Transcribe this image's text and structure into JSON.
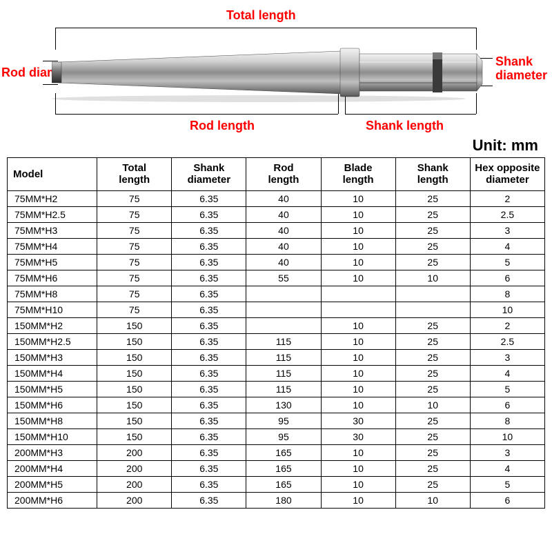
{
  "diagram": {
    "labels": {
      "total_length": "Total length",
      "rod_diameter": "Rod diameter",
      "shank_diameter": "Shank\ndiameter",
      "rod_length": "Rod length",
      "shank_length": "Shank length"
    },
    "unit_text": "Unit: mm",
    "colors": {
      "label_red": "#ff0000",
      "label_black": "#000000",
      "bit_light": "#d8d8d8",
      "bit_mid": "#a5a5a5",
      "bit_dark": "#4a4a4a",
      "bit_shadow": "#1a1a1a"
    }
  },
  "table": {
    "headers": [
      "Model",
      "Total\nlength",
      "Shank\ndiameter",
      "Rod\nlength",
      "Blade\nlength",
      "Shank\nlength",
      "Hex opposite\ndiameter"
    ],
    "rows": [
      [
        "75MM*H2",
        "75",
        "6.35",
        "40",
        "10",
        "25",
        "2"
      ],
      [
        "75MM*H2.5",
        "75",
        "6.35",
        "40",
        "10",
        "25",
        "2.5"
      ],
      [
        "75MM*H3",
        "75",
        "6.35",
        "40",
        "10",
        "25",
        "3"
      ],
      [
        "75MM*H4",
        "75",
        "6.35",
        "40",
        "10",
        "25",
        "4"
      ],
      [
        "75MM*H5",
        "75",
        "6.35",
        "40",
        "10",
        "25",
        "5"
      ],
      [
        "75MM*H6",
        "75",
        "6.35",
        "55",
        "10",
        "10",
        "6"
      ],
      [
        "75MM*H8",
        "75",
        "6.35",
        "",
        "",
        "",
        "8"
      ],
      [
        "75MM*H10",
        "75",
        "6.35",
        "",
        "",
        "",
        "10"
      ],
      [
        "150MM*H2",
        "150",
        "6.35",
        "",
        "10",
        "25",
        "2"
      ],
      [
        "150MM*H2.5",
        "150",
        "6.35",
        "115",
        "10",
        "25",
        "2.5"
      ],
      [
        "150MM*H3",
        "150",
        "6.35",
        "115",
        "10",
        "25",
        "3"
      ],
      [
        "150MM*H4",
        "150",
        "6.35",
        "115",
        "10",
        "25",
        "4"
      ],
      [
        "150MM*H5",
        "150",
        "6.35",
        "115",
        "10",
        "25",
        "5"
      ],
      [
        "150MM*H6",
        "150",
        "6.35",
        "130",
        "10",
        "10",
        "6"
      ],
      [
        "150MM*H8",
        "150",
        "6.35",
        "95",
        "30",
        "25",
        "8"
      ],
      [
        "150MM*H10",
        "150",
        "6.35",
        "95",
        "30",
        "25",
        "10"
      ],
      [
        "200MM*H3",
        "200",
        "6.35",
        "165",
        "10",
        "25",
        "3"
      ],
      [
        "200MM*H4",
        "200",
        "6.35",
        "165",
        "10",
        "25",
        "4"
      ],
      [
        "200MM*H5",
        "200",
        "6.35",
        "165",
        "10",
        "25",
        "5"
      ],
      [
        "200MM*H6",
        "200",
        "6.35",
        "180",
        "10",
        "10",
        "6"
      ]
    ]
  }
}
